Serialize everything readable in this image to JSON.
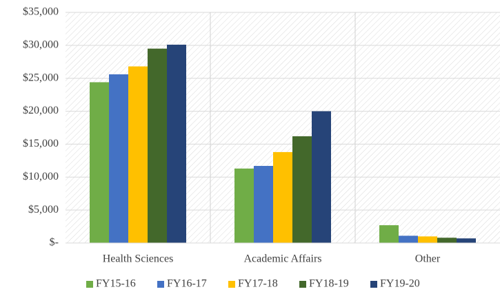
{
  "chart_data": {
    "type": "bar",
    "categories": [
      "Health Sciences",
      "Academic Affairs",
      "Other"
    ],
    "series": [
      {
        "name": "FY15-16",
        "color": "#70ad47",
        "values": [
          24400,
          11300,
          2700
        ]
      },
      {
        "name": "FY16-17",
        "color": "#4472c4",
        "values": [
          25600,
          11700,
          1100
        ]
      },
      {
        "name": "FY17-18",
        "color": "#ffc000",
        "values": [
          26800,
          13800,
          1000
        ]
      },
      {
        "name": "FY18-19",
        "color": "#43682b",
        "values": [
          29500,
          16200,
          800
        ]
      },
      {
        "name": "FY19-20",
        "color": "#264478",
        "values": [
          30100,
          20000,
          700
        ]
      }
    ],
    "ylim": [
      0,
      35000
    ],
    "yticks": [
      {
        "value": 0,
        "label": "$-"
      },
      {
        "value": 5000,
        "label": "$5,000"
      },
      {
        "value": 10000,
        "label": "$10,000"
      },
      {
        "value": 15000,
        "label": "$15,000"
      },
      {
        "value": 20000,
        "label": "$20,000"
      },
      {
        "value": 25000,
        "label": "$25,000"
      },
      {
        "value": 30000,
        "label": "$30,000"
      },
      {
        "value": 35000,
        "label": "$35,000"
      }
    ],
    "grid": true,
    "legend": "bottom"
  }
}
